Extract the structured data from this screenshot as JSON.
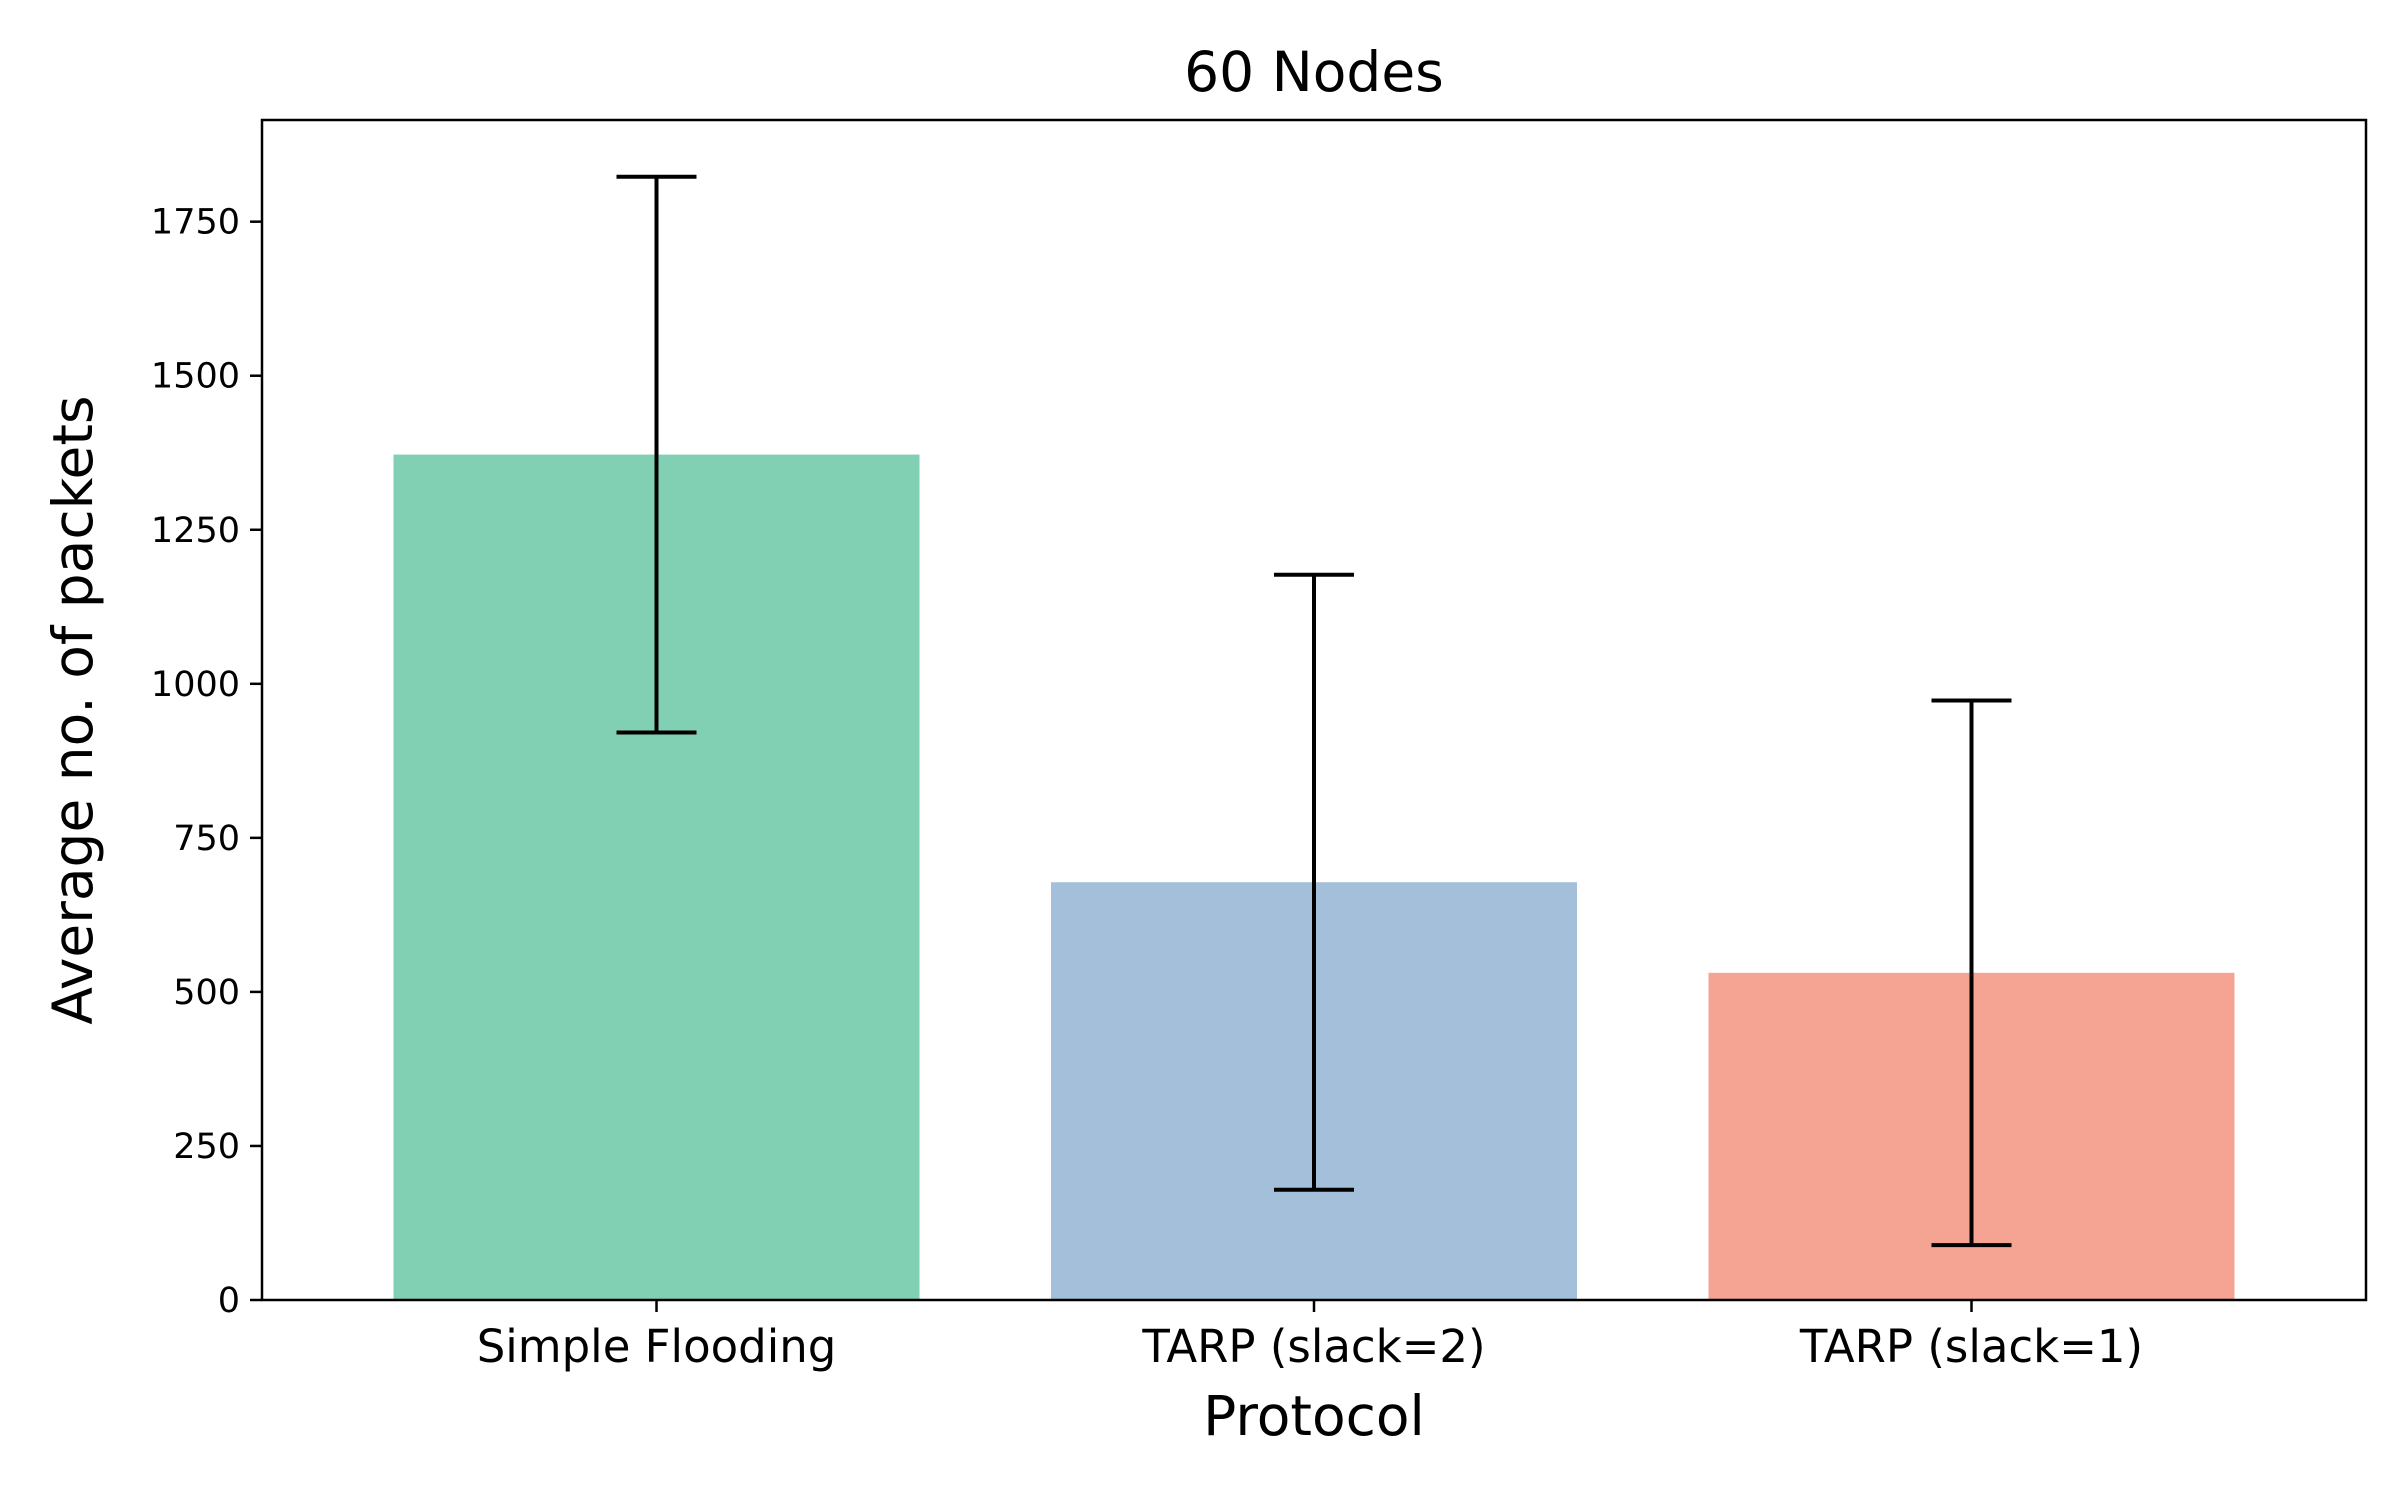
{
  "chart_data": {
    "type": "bar",
    "title": "60 Nodes",
    "xlabel": "Protocol",
    "ylabel": "Average no. of packets",
    "categories": [
      "Simple Flooding",
      "TARP (slack=2)",
      "TARP (slack=1)"
    ],
    "values": [
      1372,
      678,
      531
    ],
    "error": [
      451,
      499,
      442
    ],
    "colors": [
      "#82d0b4",
      "#a3bfd9",
      "#f5a392"
    ],
    "ylim": [
      0,
      1915
    ],
    "yticks": [
      0,
      250,
      500,
      750,
      1000,
      1250,
      1500,
      1750
    ],
    "grid": false,
    "legend": "none"
  }
}
